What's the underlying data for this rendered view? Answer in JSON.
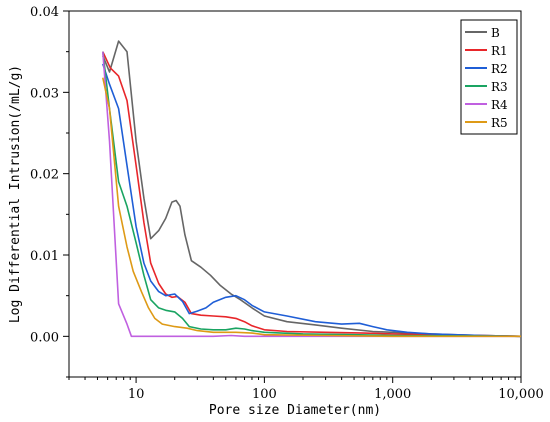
{
  "chart_data": {
    "type": "line",
    "title": "",
    "xlabel": "Pore size Diameter(nm)",
    "ylabel": "Log Differential Intrusion(/mL/g)",
    "x_scale": "log",
    "xlim": [
      3,
      10000
    ],
    "ylim": [
      -0.005,
      0.04
    ],
    "x_ticks": [
      10,
      100,
      1000,
      10000
    ],
    "x_tick_labels": [
      "10",
      "100",
      "1,000",
      "10,000"
    ],
    "y_ticks": [
      0.0,
      0.01,
      0.02,
      0.03,
      0.04
    ],
    "y_tick_labels": [
      "0.00",
      "0.01",
      "0.02",
      "0.03",
      "0.04"
    ],
    "grid": false,
    "legend_position": "top-right",
    "series": [
      {
        "name": "B",
        "color": "#666666",
        "points": [
          [
            5.5,
            0.0345
          ],
          [
            6.2,
            0.0325
          ],
          [
            7.3,
            0.0363
          ],
          [
            8.5,
            0.035
          ],
          [
            10,
            0.024
          ],
          [
            11.5,
            0.017
          ],
          [
            13,
            0.012
          ],
          [
            15,
            0.013
          ],
          [
            17,
            0.0145
          ],
          [
            19,
            0.0165
          ],
          [
            20.5,
            0.0167
          ],
          [
            22,
            0.016
          ],
          [
            24,
            0.0125
          ],
          [
            27,
            0.0093
          ],
          [
            32,
            0.0085
          ],
          [
            38,
            0.0075
          ],
          [
            45,
            0.0063
          ],
          [
            55,
            0.0052
          ],
          [
            65,
            0.0045
          ],
          [
            80,
            0.0035
          ],
          [
            100,
            0.0025
          ],
          [
            150,
            0.0018
          ],
          [
            250,
            0.0014
          ],
          [
            400,
            0.001
          ],
          [
            700,
            0.0006
          ],
          [
            1000,
            0.0005
          ],
          [
            2000,
            0.0003
          ],
          [
            3000,
            0.0002
          ],
          [
            5000,
            0.0001
          ],
          [
            10000,
            0.0
          ]
        ]
      },
      {
        "name": "R1",
        "color": "#e8262a",
        "points": [
          [
            5.5,
            0.035
          ],
          [
            6.3,
            0.033
          ],
          [
            7.3,
            0.032
          ],
          [
            8.5,
            0.029
          ],
          [
            10,
            0.021
          ],
          [
            11.5,
            0.014
          ],
          [
            13,
            0.009
          ],
          [
            15,
            0.0065
          ],
          [
            17,
            0.0052
          ],
          [
            19,
            0.0048
          ],
          [
            21,
            0.0049
          ],
          [
            24,
            0.0042
          ],
          [
            27,
            0.0028
          ],
          [
            32,
            0.0026
          ],
          [
            40,
            0.0025
          ],
          [
            50,
            0.0024
          ],
          [
            60,
            0.0022
          ],
          [
            70,
            0.0018
          ],
          [
            80,
            0.0013
          ],
          [
            100,
            0.0008
          ],
          [
            150,
            0.0006
          ],
          [
            300,
            0.0005
          ],
          [
            600,
            0.0004
          ],
          [
            1000,
            0.0003
          ],
          [
            2000,
            0.0002
          ],
          [
            5000,
            0.0001
          ],
          [
            10000,
            0.0
          ]
        ]
      },
      {
        "name": "R2",
        "color": "#1f5ed6",
        "points": [
          [
            5.5,
            0.0335
          ],
          [
            6.2,
            0.031
          ],
          [
            7.3,
            0.028
          ],
          [
            8.5,
            0.021
          ],
          [
            10,
            0.0135
          ],
          [
            11.5,
            0.009
          ],
          [
            13,
            0.0068
          ],
          [
            15,
            0.0055
          ],
          [
            17,
            0.005
          ],
          [
            20,
            0.0052
          ],
          [
            23,
            0.0043
          ],
          [
            26,
            0.0028
          ],
          [
            30,
            0.0031
          ],
          [
            35,
            0.0035
          ],
          [
            40,
            0.0042
          ],
          [
            50,
            0.0048
          ],
          [
            60,
            0.005
          ],
          [
            70,
            0.0045
          ],
          [
            80,
            0.0038
          ],
          [
            100,
            0.003
          ],
          [
            150,
            0.0025
          ],
          [
            250,
            0.0018
          ],
          [
            400,
            0.0015
          ],
          [
            550,
            0.0016
          ],
          [
            700,
            0.0012
          ],
          [
            900,
            0.0008
          ],
          [
            1300,
            0.0005
          ],
          [
            2000,
            0.0003
          ],
          [
            3000,
            0.0002
          ],
          [
            5000,
            0.0001
          ],
          [
            10000,
            0.0
          ]
        ]
      },
      {
        "name": "R3",
        "color": "#1aa462",
        "points": [
          [
            5.5,
            0.035
          ],
          [
            6.2,
            0.028
          ],
          [
            7.3,
            0.019
          ],
          [
            8.5,
            0.016
          ],
          [
            10,
            0.0115
          ],
          [
            11.5,
            0.0075
          ],
          [
            13,
            0.0045
          ],
          [
            15,
            0.0035
          ],
          [
            17,
            0.0032
          ],
          [
            20,
            0.003
          ],
          [
            23,
            0.0022
          ],
          [
            26,
            0.0012
          ],
          [
            32,
            0.0009
          ],
          [
            40,
            0.0008
          ],
          [
            50,
            0.0008
          ],
          [
            60,
            0.001
          ],
          [
            70,
            0.0009
          ],
          [
            80,
            0.0007
          ],
          [
            100,
            0.0005
          ],
          [
            200,
            0.0003
          ],
          [
            500,
            0.0002
          ],
          [
            1000,
            0.0001
          ],
          [
            10000,
            0.0
          ]
        ]
      },
      {
        "name": "R4",
        "color": "#c060e0",
        "points": [
          [
            5.5,
            0.035
          ],
          [
            6.2,
            0.024
          ],
          [
            7.3,
            0.004
          ],
          [
            8.5,
            0.0015
          ],
          [
            9.2,
            0.0
          ],
          [
            12,
            0.0
          ],
          [
            20,
            0.0
          ],
          [
            40,
            0.0
          ],
          [
            55,
            0.0001
          ],
          [
            70,
            0.0
          ],
          [
            200,
            0.0
          ],
          [
            10000,
            0.0
          ]
        ]
      },
      {
        "name": "R5",
        "color": "#de9a16",
        "points": [
          [
            5.5,
            0.0318
          ],
          [
            6.2,
            0.028
          ],
          [
            7.3,
            0.016
          ],
          [
            8.5,
            0.011
          ],
          [
            9.5,
            0.008
          ],
          [
            11,
            0.0055
          ],
          [
            12.5,
            0.0035
          ],
          [
            14,
            0.0022
          ],
          [
            16,
            0.0015
          ],
          [
            20,
            0.0012
          ],
          [
            25,
            0.001
          ],
          [
            30,
            0.0007
          ],
          [
            40,
            0.0005
          ],
          [
            60,
            0.0005
          ],
          [
            80,
            0.0004
          ],
          [
            100,
            0.0002
          ],
          [
            300,
            0.0001
          ],
          [
            1000,
            0.0
          ],
          [
            10000,
            0.0
          ]
        ]
      }
    ]
  }
}
